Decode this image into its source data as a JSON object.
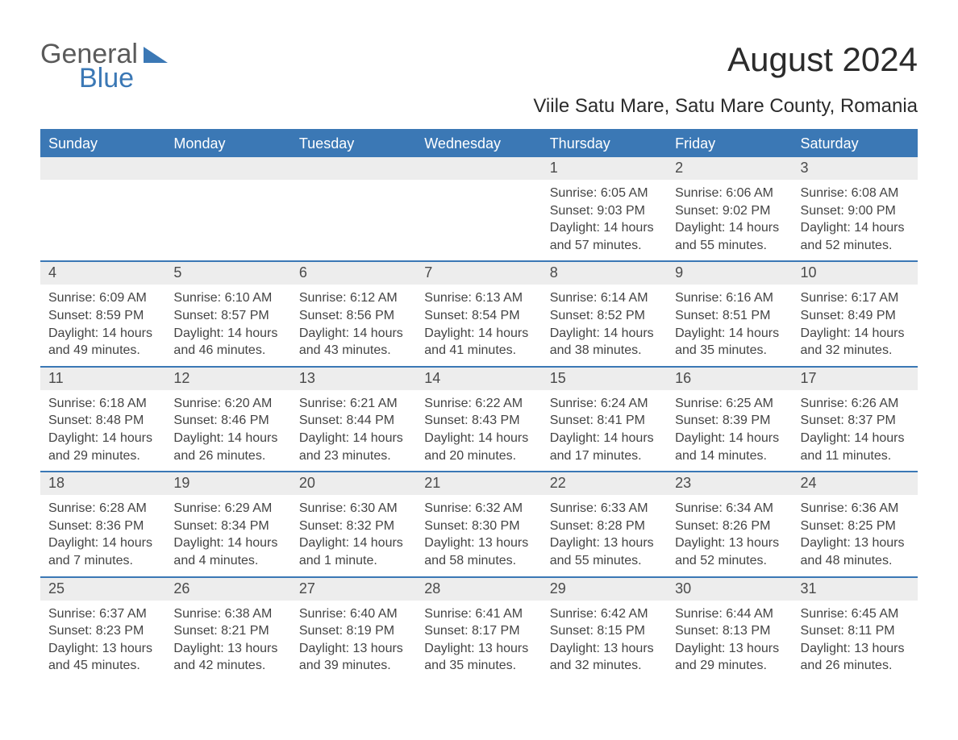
{
  "brand": {
    "part1": "General",
    "part2": "Blue"
  },
  "title": "August 2024",
  "subtitle": "Viile Satu Mare, Satu Mare County, Romania",
  "colors": {
    "accent": "#3b78b5",
    "header_bg": "#3b78b5",
    "header_text": "#ffffff",
    "daynum_bg": "#ededed",
    "body_text": "#444444",
    "page_bg": "#ffffff",
    "logo_gray": "#5a5a5a",
    "logo_blue": "#3b78b5"
  },
  "font_sizes": {
    "title": 42,
    "subtitle": 24,
    "header": 18,
    "daynum": 18,
    "body": 16
  },
  "calendar": {
    "type": "table",
    "columns": [
      "Sunday",
      "Monday",
      "Tuesday",
      "Wednesday",
      "Thursday",
      "Friday",
      "Saturday"
    ],
    "weeks": [
      [
        null,
        null,
        null,
        null,
        {
          "n": "1",
          "sunrise": "6:05 AM",
          "sunset": "9:03 PM",
          "daylight": "14 hours and 57 minutes."
        },
        {
          "n": "2",
          "sunrise": "6:06 AM",
          "sunset": "9:02 PM",
          "daylight": "14 hours and 55 minutes."
        },
        {
          "n": "3",
          "sunrise": "6:08 AM",
          "sunset": "9:00 PM",
          "daylight": "14 hours and 52 minutes."
        }
      ],
      [
        {
          "n": "4",
          "sunrise": "6:09 AM",
          "sunset": "8:59 PM",
          "daylight": "14 hours and 49 minutes."
        },
        {
          "n": "5",
          "sunrise": "6:10 AM",
          "sunset": "8:57 PM",
          "daylight": "14 hours and 46 minutes."
        },
        {
          "n": "6",
          "sunrise": "6:12 AM",
          "sunset": "8:56 PM",
          "daylight": "14 hours and 43 minutes."
        },
        {
          "n": "7",
          "sunrise": "6:13 AM",
          "sunset": "8:54 PM",
          "daylight": "14 hours and 41 minutes."
        },
        {
          "n": "8",
          "sunrise": "6:14 AM",
          "sunset": "8:52 PM",
          "daylight": "14 hours and 38 minutes."
        },
        {
          "n": "9",
          "sunrise": "6:16 AM",
          "sunset": "8:51 PM",
          "daylight": "14 hours and 35 minutes."
        },
        {
          "n": "10",
          "sunrise": "6:17 AM",
          "sunset": "8:49 PM",
          "daylight": "14 hours and 32 minutes."
        }
      ],
      [
        {
          "n": "11",
          "sunrise": "6:18 AM",
          "sunset": "8:48 PM",
          "daylight": "14 hours and 29 minutes."
        },
        {
          "n": "12",
          "sunrise": "6:20 AM",
          "sunset": "8:46 PM",
          "daylight": "14 hours and 26 minutes."
        },
        {
          "n": "13",
          "sunrise": "6:21 AM",
          "sunset": "8:44 PM",
          "daylight": "14 hours and 23 minutes."
        },
        {
          "n": "14",
          "sunrise": "6:22 AM",
          "sunset": "8:43 PM",
          "daylight": "14 hours and 20 minutes."
        },
        {
          "n": "15",
          "sunrise": "6:24 AM",
          "sunset": "8:41 PM",
          "daylight": "14 hours and 17 minutes."
        },
        {
          "n": "16",
          "sunrise": "6:25 AM",
          "sunset": "8:39 PM",
          "daylight": "14 hours and 14 minutes."
        },
        {
          "n": "17",
          "sunrise": "6:26 AM",
          "sunset": "8:37 PM",
          "daylight": "14 hours and 11 minutes."
        }
      ],
      [
        {
          "n": "18",
          "sunrise": "6:28 AM",
          "sunset": "8:36 PM",
          "daylight": "14 hours and 7 minutes."
        },
        {
          "n": "19",
          "sunrise": "6:29 AM",
          "sunset": "8:34 PM",
          "daylight": "14 hours and 4 minutes."
        },
        {
          "n": "20",
          "sunrise": "6:30 AM",
          "sunset": "8:32 PM",
          "daylight": "14 hours and 1 minute."
        },
        {
          "n": "21",
          "sunrise": "6:32 AM",
          "sunset": "8:30 PM",
          "daylight": "13 hours and 58 minutes."
        },
        {
          "n": "22",
          "sunrise": "6:33 AM",
          "sunset": "8:28 PM",
          "daylight": "13 hours and 55 minutes."
        },
        {
          "n": "23",
          "sunrise": "6:34 AM",
          "sunset": "8:26 PM",
          "daylight": "13 hours and 52 minutes."
        },
        {
          "n": "24",
          "sunrise": "6:36 AM",
          "sunset": "8:25 PM",
          "daylight": "13 hours and 48 minutes."
        }
      ],
      [
        {
          "n": "25",
          "sunrise": "6:37 AM",
          "sunset": "8:23 PM",
          "daylight": "13 hours and 45 minutes."
        },
        {
          "n": "26",
          "sunrise": "6:38 AM",
          "sunset": "8:21 PM",
          "daylight": "13 hours and 42 minutes."
        },
        {
          "n": "27",
          "sunrise": "6:40 AM",
          "sunset": "8:19 PM",
          "daylight": "13 hours and 39 minutes."
        },
        {
          "n": "28",
          "sunrise": "6:41 AM",
          "sunset": "8:17 PM",
          "daylight": "13 hours and 35 minutes."
        },
        {
          "n": "29",
          "sunrise": "6:42 AM",
          "sunset": "8:15 PM",
          "daylight": "13 hours and 32 minutes."
        },
        {
          "n": "30",
          "sunrise": "6:44 AM",
          "sunset": "8:13 PM",
          "daylight": "13 hours and 29 minutes."
        },
        {
          "n": "31",
          "sunrise": "6:45 AM",
          "sunset": "8:11 PM",
          "daylight": "13 hours and 26 minutes."
        }
      ]
    ],
    "labels": {
      "sunrise": "Sunrise:",
      "sunset": "Sunset:",
      "daylight": "Daylight:"
    }
  }
}
